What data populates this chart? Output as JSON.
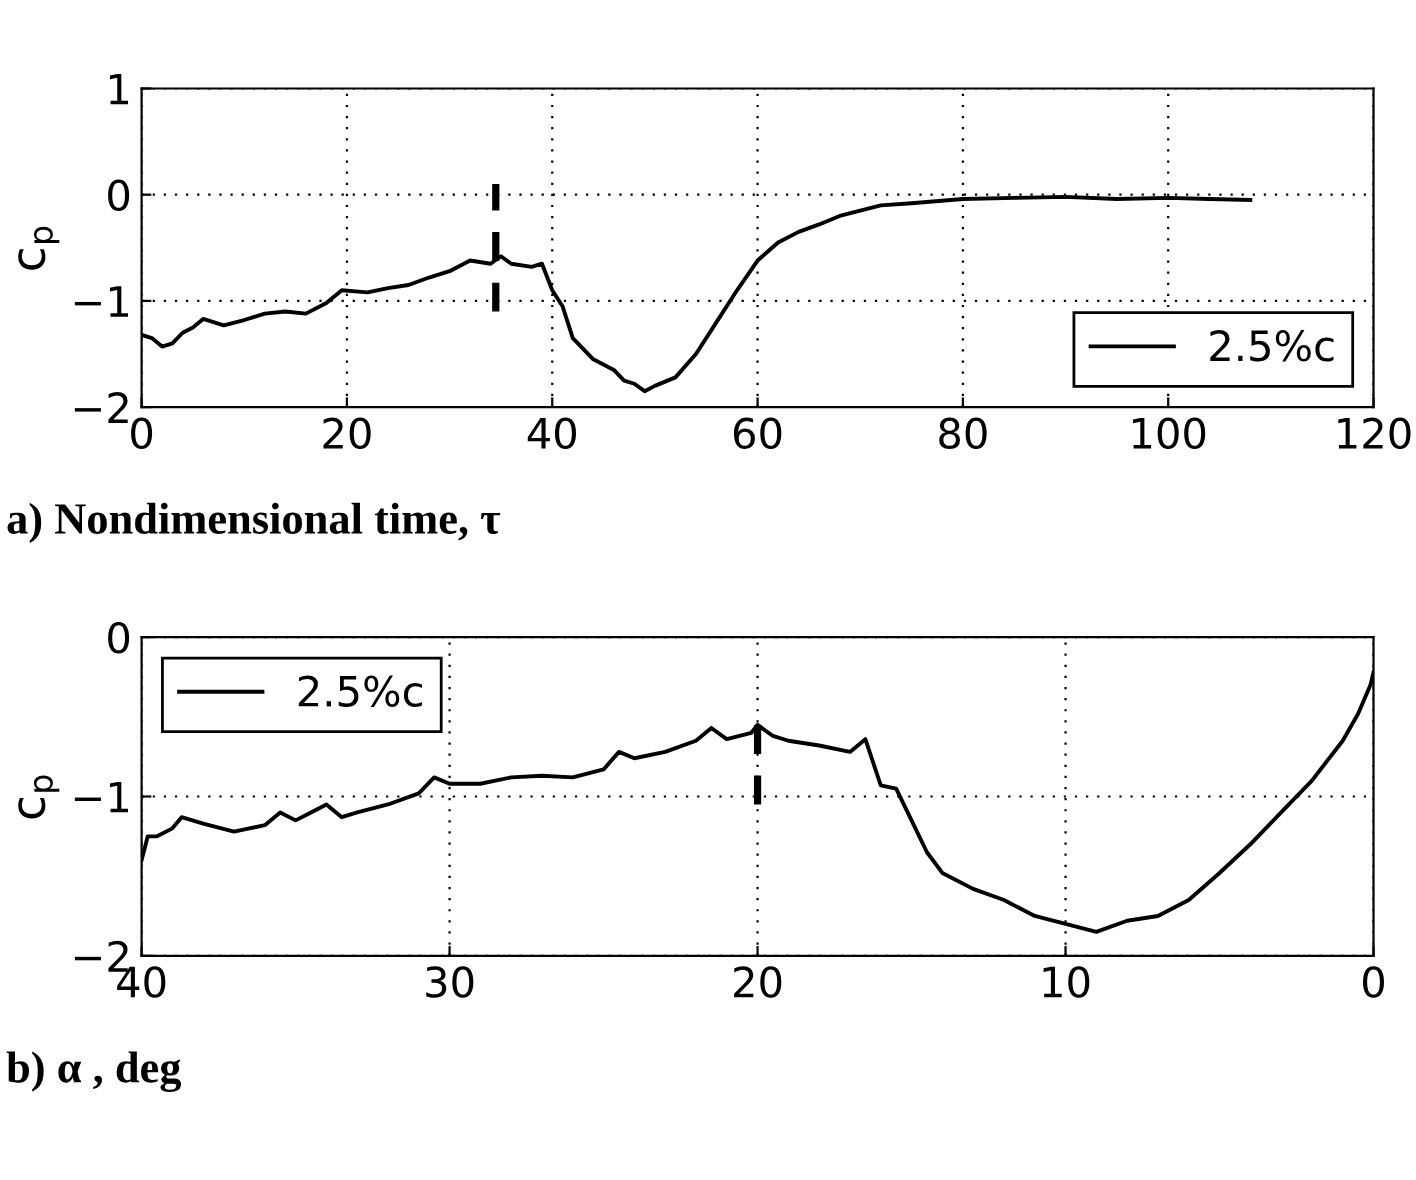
{
  "chart_data": [
    {
      "type": "line",
      "xlabel": "a) Nondimensional time, τ",
      "ylabel": "c$_{p}$",
      "xlim": [
        0,
        120
      ],
      "ylim": [
        -2,
        1
      ],
      "xticks": [
        0,
        20,
        40,
        60,
        80,
        100,
        120
      ],
      "yticks": [
        -2,
        -1,
        0,
        1
      ],
      "grid": true,
      "legend": "bottom right",
      "series": [
        {
          "name": "2.5%c",
          "color": "#000000",
          "line_style": "solid",
          "x": [
            0,
            1,
            2,
            3,
            4,
            5,
            6,
            7,
            8,
            10,
            12,
            14,
            16,
            18,
            19.5,
            22,
            24,
            26,
            28,
            30,
            32,
            34,
            35,
            36,
            38,
            39,
            40,
            41,
            42,
            44,
            46,
            47,
            48,
            49,
            50,
            52,
            54,
            56,
            58,
            60,
            62,
            64,
            66,
            68,
            70,
            72,
            75,
            80,
            85,
            90,
            95,
            100,
            104,
            108
          ],
          "values": [
            -1.32,
            -1.35,
            -1.43,
            -1.4,
            -1.3,
            -1.25,
            -1.17,
            -1.2,
            -1.23,
            -1.18,
            -1.12,
            -1.1,
            -1.12,
            -1.02,
            -0.9,
            -0.92,
            -0.88,
            -0.85,
            -0.78,
            -0.72,
            -0.62,
            -0.65,
            -0.58,
            -0.65,
            -0.68,
            -0.65,
            -0.9,
            -1.05,
            -1.35,
            -1.55,
            -1.65,
            -1.75,
            -1.78,
            -1.85,
            -1.8,
            -1.72,
            -1.5,
            -1.2,
            -0.9,
            -0.62,
            -0.45,
            -0.35,
            -0.28,
            -0.2,
            -0.15,
            -0.1,
            -0.08,
            -0.04,
            -0.03,
            -0.02,
            -0.04,
            -0.03,
            -0.04,
            -0.05
          ]
        },
        {
          "color": "#000000",
          "line_style": "dashed",
          "x": [
            34.5,
            34.5
          ],
          "values": [
            -1.1,
            0.1
          ]
        }
      ]
    },
    {
      "type": "line",
      "xlabel": "b) α , deg",
      "ylabel": "c$_{p}$",
      "xlim": [
        40,
        0
      ],
      "ylim": [
        -2,
        0
      ],
      "xticks": [
        40,
        30,
        20,
        10,
        0
      ],
      "yticks": [
        -2,
        -1,
        0
      ],
      "grid": true,
      "legend": "top left",
      "series": [
        {
          "name": "2.5%c",
          "color": "#000000",
          "line_style": "solid",
          "x": [
            40,
            39.8,
            39.5,
            39,
            38.7,
            38,
            37,
            36,
            35.5,
            35,
            34.5,
            34,
            33.5,
            33,
            32,
            31,
            30.5,
            30,
            29,
            28,
            27,
            26,
            25,
            24.5,
            24,
            23,
            22,
            21.5,
            21,
            20.2,
            20,
            19.5,
            19,
            18,
            17,
            16.5,
            16,
            15.5,
            15,
            14.5,
            14,
            13,
            12,
            11,
            10,
            9,
            8,
            7,
            6,
            5,
            4,
            3,
            2,
            1,
            0.5,
            0.1,
            0
          ],
          "values": [
            -1.4,
            -1.25,
            -1.25,
            -1.2,
            -1.13,
            -1.17,
            -1.22,
            -1.18,
            -1.1,
            -1.15,
            -1.1,
            -1.05,
            -1.13,
            -1.1,
            -1.05,
            -0.98,
            -0.88,
            -0.92,
            -0.92,
            -0.88,
            -0.87,
            -0.88,
            -0.83,
            -0.72,
            -0.76,
            -0.72,
            -0.65,
            -0.57,
            -0.64,
            -0.6,
            -0.55,
            -0.62,
            -0.65,
            -0.68,
            -0.72,
            -0.64,
            -0.93,
            -0.95,
            -1.15,
            -1.35,
            -1.48,
            -1.58,
            -1.65,
            -1.75,
            -1.8,
            -1.85,
            -1.78,
            -1.75,
            -1.65,
            -1.48,
            -1.3,
            -1.1,
            -0.9,
            -0.65,
            -0.48,
            -0.3,
            -0.22
          ]
        },
        {
          "color": "#000000",
          "line_style": "dashed",
          "x": [
            20,
            20
          ],
          "values": [
            -1.05,
            -0.55
          ]
        }
      ]
    }
  ]
}
